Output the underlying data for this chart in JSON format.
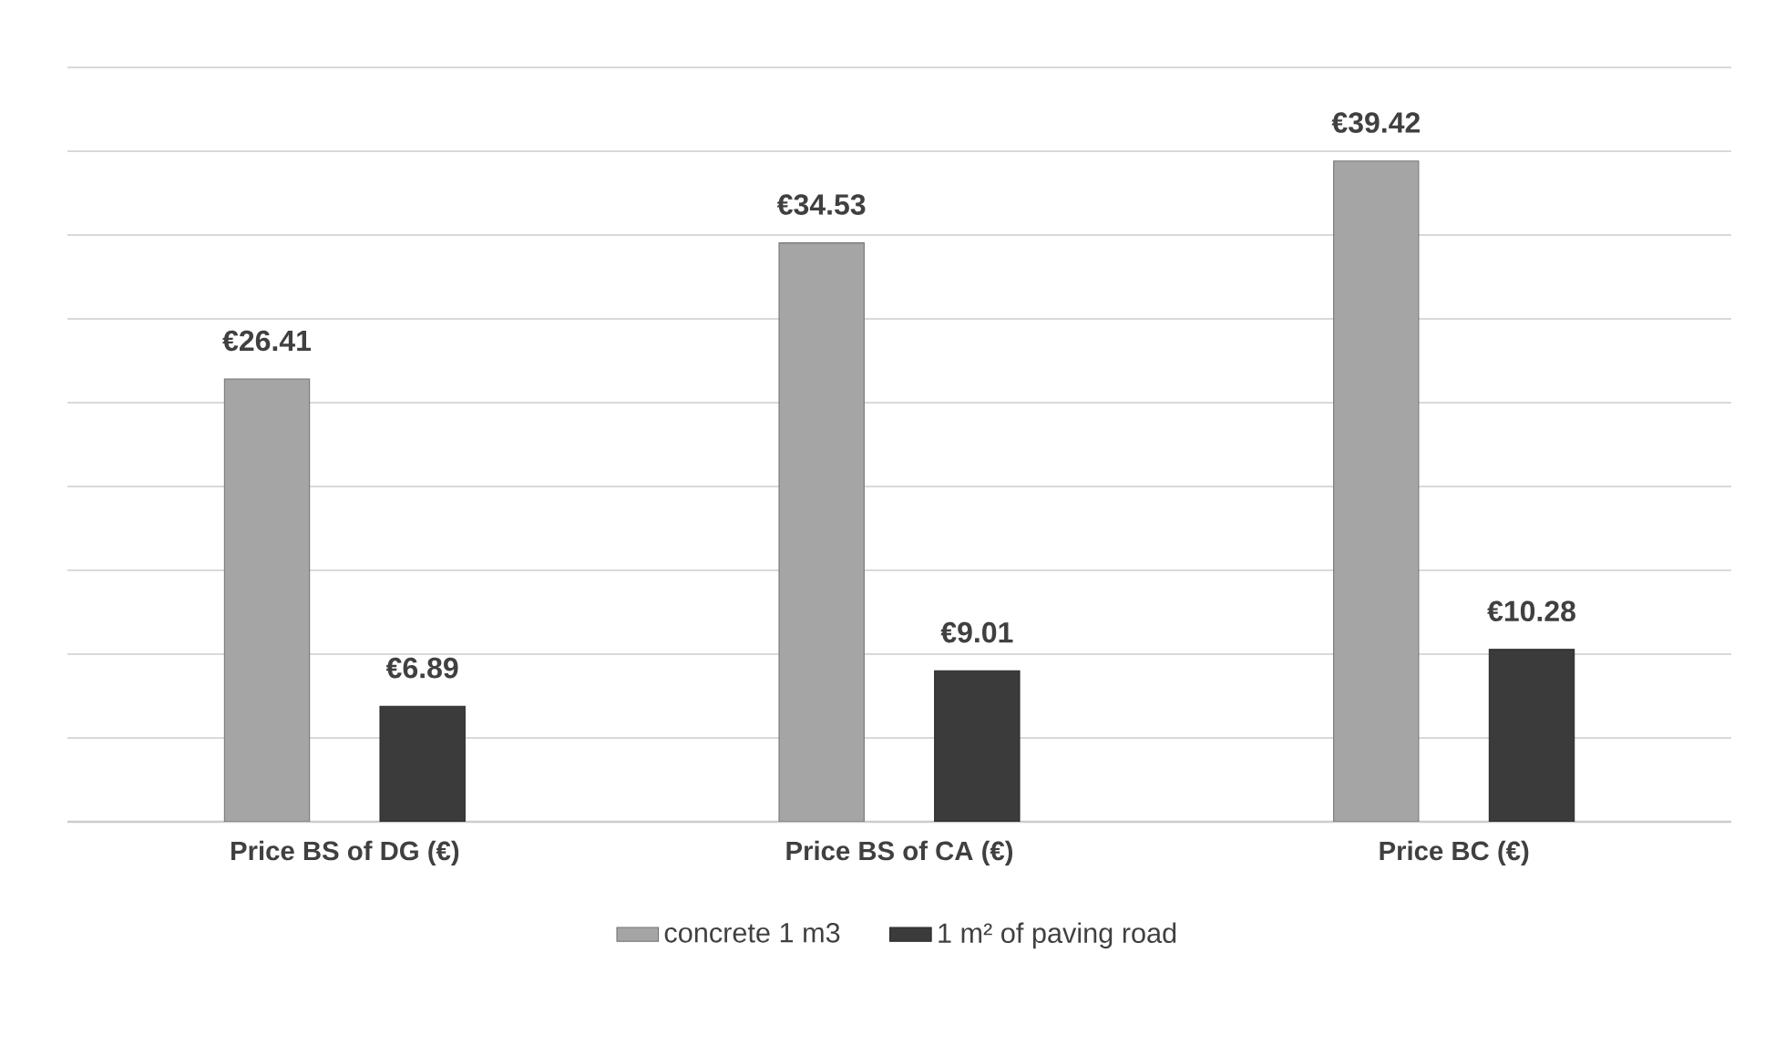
{
  "chart_data": {
    "type": "bar",
    "categories": [
      "Price BS of DG (€)",
      "Price BS of CA (€)",
      "Price BC (€)"
    ],
    "series": [
      {
        "name": "concrete 1 m3",
        "color": "#a5a5a5",
        "values": [
          26.41,
          34.53,
          39.42
        ],
        "value_labels": [
          "€26.41",
          "€34.53",
          "€39.42"
        ]
      },
      {
        "name": "1 m² of paving road",
        "color": "#3b3b3b",
        "values": [
          6.89,
          9.01,
          10.28
        ],
        "value_labels": [
          "€6.89",
          "€9.01",
          "€10.28"
        ]
      }
    ],
    "ylim": [
      0,
      45
    ],
    "yticks": [
      {
        "value": 0,
        "label": null
      },
      {
        "value": 5,
        "label": null
      },
      {
        "value": 10,
        "label": null
      },
      {
        "value": 15,
        "label": null
      },
      {
        "value": 20,
        "label": null
      },
      {
        "value": 25,
        "label": null
      },
      {
        "value": 30,
        "label": null
      },
      {
        "value": 35,
        "label": null
      },
      {
        "value": 40,
        "label": null
      },
      {
        "value": 45,
        "label": null
      }
    ],
    "grid": "y",
    "legend": "bottom",
    "tick_labels": "x"
  }
}
